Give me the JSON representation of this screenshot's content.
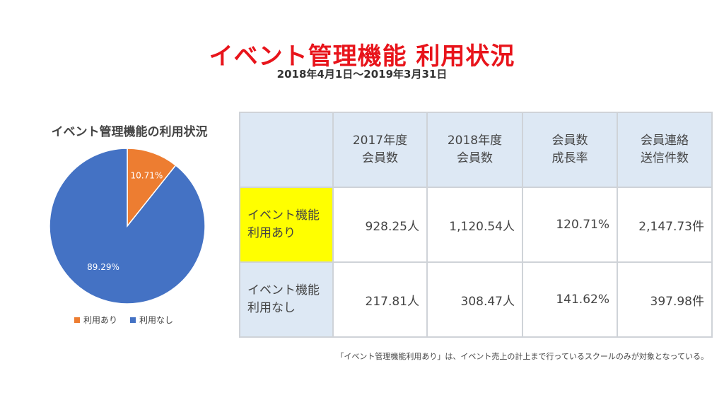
{
  "title": "イベント管理機能 利用状況",
  "subtitle": "2018年4月1日〜2019年3月31日",
  "chart_data": {
    "type": "pie",
    "title": "イベント管理機能の利用状況",
    "slices": [
      {
        "label": "利用あり",
        "value": 10.71,
        "display": "10.71%",
        "color": "#ed7d31"
      },
      {
        "label": "利用なし",
        "value": 89.29,
        "display": "89.29%",
        "color": "#4472c4"
      }
    ],
    "legend": "bottom"
  },
  "table": {
    "headers": [
      [
        "2017年度",
        "会員数"
      ],
      [
        "2018年度",
        "会員数"
      ],
      [
        "会員数",
        "成長率"
      ],
      [
        "会員連絡",
        "送信件数"
      ]
    ],
    "rows": [
      {
        "label": [
          "イベント機能",
          "利用あり"
        ],
        "highlight": true,
        "values": [
          "928.25人",
          "1,120.54人",
          "120.71%",
          "2,147.73件"
        ]
      },
      {
        "label": [
          "イベント機能",
          "利用なし"
        ],
        "highlight": false,
        "values": [
          "217.81人",
          "308.47人",
          "141.62%",
          "397.98件"
        ]
      }
    ]
  },
  "note": "「イベント管理機能利用あり」は、イベント売上の計上まで行っているスクールのみが対象となっている。",
  "colors": {
    "title": "#e8141b",
    "header_bg": "#dde8f4",
    "highlight": "#ffff00"
  }
}
